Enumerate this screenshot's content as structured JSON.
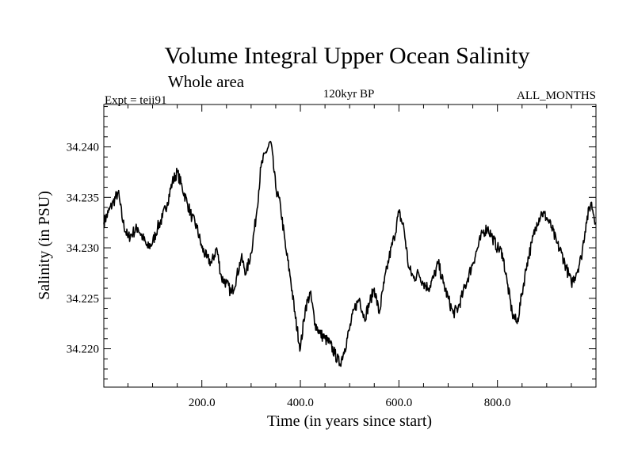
{
  "chart_data": {
    "type": "line",
    "title": "Volume Integral Upper Ocean Salinity",
    "subtitle": "Whole area",
    "experiment": "Expt = teii91",
    "period": "120kyr BP",
    "months": "ALL_MONTHS",
    "xlabel": "Time (in years since start)",
    "ylabel": "Salinity (in PSU)",
    "xlim": [
      1,
      1000
    ],
    "ylim": [
      34.2162,
      34.2442
    ],
    "xticks": [
      200,
      400,
      600,
      800
    ],
    "xtick_labels": [
      "200.0",
      "400.0",
      "600.0",
      "800.0"
    ],
    "yticks": [
      34.22,
      34.225,
      34.23,
      34.235,
      34.24
    ],
    "ytick_labels": [
      "34.220",
      "34.225",
      "34.230",
      "34.235",
      "34.240"
    ],
    "grid": false,
    "series": [
      {
        "color": "#000000",
        "x": [
          1,
          10,
          20,
          30,
          40,
          50,
          60,
          70,
          80,
          90,
          100,
          110,
          120,
          130,
          140,
          150,
          160,
          170,
          180,
          190,
          200,
          210,
          220,
          230,
          240,
          250,
          260,
          270,
          280,
          290,
          300,
          310,
          320,
          330,
          340,
          350,
          360,
          370,
          380,
          390,
          400,
          410,
          420,
          430,
          440,
          450,
          460,
          470,
          480,
          490,
          500,
          510,
          520,
          530,
          540,
          550,
          560,
          570,
          580,
          590,
          600,
          610,
          620,
          630,
          640,
          650,
          660,
          670,
          680,
          690,
          700,
          710,
          720,
          730,
          740,
          750,
          760,
          770,
          780,
          790,
          800,
          810,
          820,
          830,
          840,
          850,
          860,
          870,
          880,
          890,
          900,
          910,
          920,
          930,
          940,
          950,
          960,
          970,
          980,
          990,
          1000
        ],
        "y": [
          34.2325,
          34.2335,
          34.2345,
          34.2355,
          34.2325,
          34.231,
          34.2315,
          34.232,
          34.231,
          34.23,
          34.2305,
          34.232,
          34.233,
          34.2345,
          34.2365,
          34.2375,
          34.236,
          34.2345,
          34.233,
          34.232,
          34.23,
          34.229,
          34.2285,
          34.23,
          34.227,
          34.2265,
          34.2255,
          34.227,
          34.229,
          34.2275,
          34.2295,
          34.233,
          34.238,
          34.2395,
          34.2405,
          34.236,
          34.234,
          34.23,
          34.227,
          34.223,
          34.22,
          34.224,
          34.2255,
          34.2225,
          34.2215,
          34.221,
          34.2205,
          34.2195,
          34.2185,
          34.22,
          34.222,
          34.224,
          34.225,
          34.223,
          34.2245,
          34.226,
          34.2235,
          34.2265,
          34.229,
          34.231,
          34.2335,
          34.232,
          34.228,
          34.227,
          34.2275,
          34.2265,
          34.226,
          34.227,
          34.2285,
          34.2265,
          34.225,
          34.2235,
          34.224,
          34.2255,
          34.227,
          34.2285,
          34.23,
          34.2315,
          34.232,
          34.231,
          34.23,
          34.2295,
          34.2265,
          34.2235,
          34.2225,
          34.2255,
          34.2285,
          34.2305,
          34.2325,
          34.2335,
          34.233,
          34.232,
          34.2305,
          34.2295,
          34.228,
          34.2265,
          34.2275,
          34.229,
          34.2325,
          34.2345,
          34.2325
        ]
      }
    ]
  }
}
